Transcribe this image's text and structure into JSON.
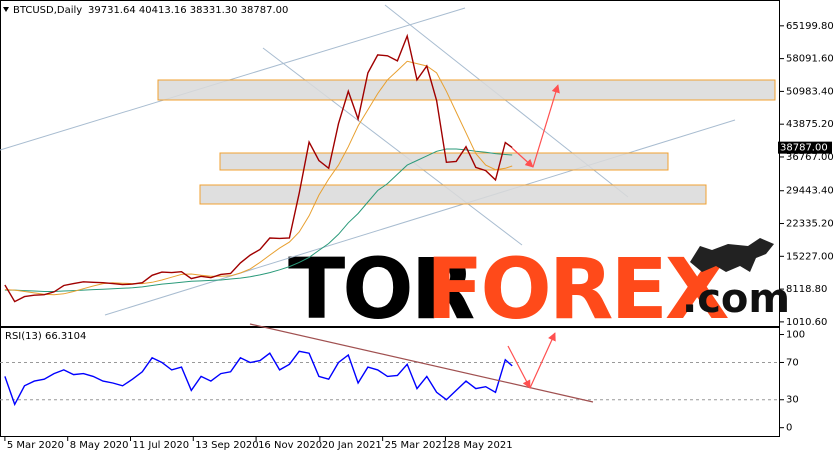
{
  "chart_data": [
    {
      "type": "line",
      "title": "BTCUSD,Daily",
      "subtitle": "39731.64 40413.16 38331.30 38787.00",
      "x": [
        0,
        10,
        20,
        30,
        40,
        50,
        60,
        70,
        80,
        90,
        100,
        110,
        120,
        130,
        140,
        150,
        160,
        170,
        180,
        190,
        200,
        210,
        220,
        230,
        240,
        250,
        260,
        270,
        280,
        290,
        300,
        310,
        320,
        330,
        340,
        350,
        360,
        370,
        380,
        390,
        400,
        410,
        420,
        430,
        440,
        450,
        460,
        470,
        480,
        490,
        500,
        510,
        517
      ],
      "xlim": [
        -5,
        790
      ],
      "ylim": [
        -100,
        70800
      ],
      "yticks": [
        {
          "value": 65199.8,
          "label": "65199.80"
        },
        {
          "value": 58091.6,
          "label": "58091.60"
        },
        {
          "value": 50983.4,
          "label": "50983.40"
        },
        {
          "value": 43875.2,
          "label": "43875.20"
        },
        {
          "value": 36767,
          "label": "36767.00"
        },
        {
          "value": 29443.4,
          "label": "29443.40"
        },
        {
          "value": 22335.2,
          "label": "22335.20"
        },
        {
          "value": 15227,
          "label": "15227.00"
        },
        {
          "value": 8118.8,
          "label": "8118.80"
        },
        {
          "value": 1010.6,
          "label": "1010.60"
        }
      ],
      "last_price": {
        "value": 38787,
        "label": "38787.00"
      },
      "series": [
        {
          "color": "#a00000",
          "values": [
            9000,
            5400,
            6500,
            6800,
            6900,
            7500,
            8900,
            9300,
            9700,
            9600,
            9500,
            9300,
            9100,
            9200,
            9500,
            11100,
            11800,
            11700,
            11900,
            10400,
            10900,
            10600,
            11300,
            11500,
            13800,
            15500,
            16700,
            19200,
            19100,
            19200,
            28900,
            40000,
            36000,
            34300,
            44000,
            51000,
            45000,
            55000,
            58900,
            58700,
            57600,
            63000,
            53500,
            56500,
            49000,
            35600,
            35800,
            39000,
            34500,
            33800,
            31800,
            39900,
            38787
          ]
        },
        {
          "color": "#e8a030",
          "values": [
            8000,
            7900,
            7600,
            7300,
            7000,
            6900,
            7100,
            7600,
            8200,
            8800,
            9300,
            9500,
            9400,
            9300,
            9300,
            9600,
            10100,
            10700,
            11300,
            11400,
            11100,
            10900,
            10900,
            11000,
            11600,
            12500,
            13900,
            15500,
            17000,
            18300,
            20500,
            24000,
            28500,
            32000,
            35000,
            39000,
            43500,
            47000,
            50500,
            53500,
            55500,
            57500,
            57000,
            56500,
            55000,
            51000,
            46500,
            42000,
            37500,
            35000,
            34000,
            34300,
            34800
          ]
        },
        {
          "color": "#2a9a7a",
          "values": [
            7900,
            7900,
            7800,
            7700,
            7600,
            7600,
            7700,
            7800,
            7900,
            8000,
            8100,
            8200,
            8300,
            8400,
            8600,
            8900,
            9200,
            9400,
            9600,
            9800,
            9900,
            10000,
            10100,
            10300,
            10500,
            10800,
            11200,
            11700,
            12300,
            13000,
            13900,
            15000,
            16500,
            18000,
            20000,
            22500,
            24500,
            27000,
            29500,
            31000,
            33000,
            35000,
            36000,
            37000,
            38000,
            38500,
            38500,
            38300,
            38000,
            37800,
            37500,
            37300,
            37200
          ]
        }
      ]
    },
    {
      "type": "line",
      "title": "RSI(13) 66.3104",
      "x": [
        0,
        10,
        20,
        30,
        40,
        50,
        60,
        70,
        80,
        90,
        100,
        110,
        120,
        130,
        140,
        150,
        160,
        170,
        180,
        190,
        200,
        210,
        220,
        230,
        240,
        250,
        260,
        270,
        280,
        290,
        300,
        310,
        320,
        330,
        340,
        350,
        360,
        370,
        380,
        390,
        400,
        410,
        420,
        430,
        440,
        450,
        460,
        470,
        480,
        490,
        500,
        510,
        517
      ],
      "xlim": [
        -5,
        790
      ],
      "xticks": [
        {
          "value": 0,
          "label": "5 Mar 2020"
        },
        {
          "value": 64,
          "label": "8 May 2020"
        },
        {
          "value": 128,
          "label": "11 Jul 2020"
        },
        {
          "value": 192,
          "label": "13 Sep 2020"
        },
        {
          "value": 256,
          "label": "16 Nov 2020"
        },
        {
          "value": 321,
          "label": "20 Jan 2021"
        },
        {
          "value": 385,
          "label": "25 Mar 2021"
        },
        {
          "value": 449,
          "label": "28 May 2021"
        }
      ],
      "ylim": [
        -10,
        107
      ],
      "yticks": [
        100,
        70,
        30,
        0
      ],
      "series": [
        {
          "color": "#0000ff",
          "values": [
            55,
            25,
            45,
            50,
            52,
            58,
            62,
            57,
            58,
            55,
            50,
            48,
            45,
            52,
            60,
            75,
            70,
            62,
            65,
            40,
            55,
            50,
            58,
            60,
            75,
            70,
            72,
            80,
            62,
            68,
            82,
            80,
            55,
            52,
            70,
            78,
            48,
            65,
            62,
            55,
            56,
            68,
            42,
            55,
            38,
            30,
            40,
            50,
            42,
            44,
            38,
            73,
            66.3104
          ]
        }
      ]
    }
  ],
  "watermark": {
    "tor": "TOR",
    "forex": "FOREX",
    "com": ".com"
  }
}
